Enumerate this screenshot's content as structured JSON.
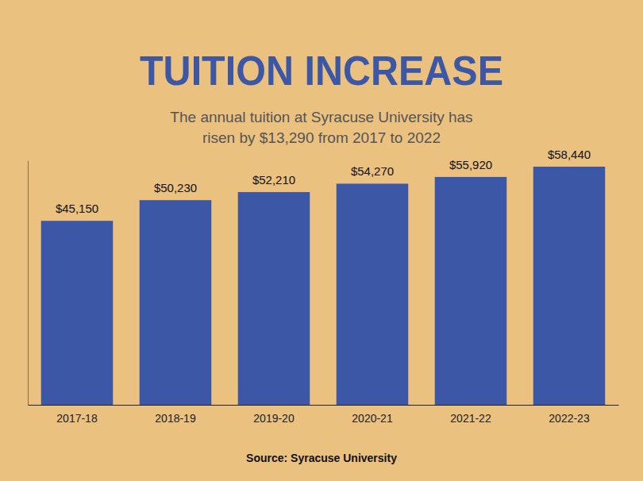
{
  "chart_data": {
    "type": "bar",
    "title": "TUITION INCREASE",
    "subtitle": [
      "The annual tuition at Syracuse University has",
      "risen by $13,290 from 2017 to 2022"
    ],
    "source": "Source: Syracuse University",
    "categories": [
      "2017-18",
      "2018-19",
      "2019-20",
      "2020-21",
      "2021-22",
      "2022-23"
    ],
    "values": [
      45150,
      50230,
      52210,
      54270,
      55920,
      58440
    ],
    "value_labels": [
      "$45,150",
      "$50,230",
      "$52,210",
      "$54,270",
      "$55,920",
      "$58,440"
    ],
    "color": "#3d57a7",
    "ylim": [
      0,
      60000
    ],
    "yticks": [],
    "grid": false,
    "data_labels": true,
    "tick_labels": "x"
  }
}
